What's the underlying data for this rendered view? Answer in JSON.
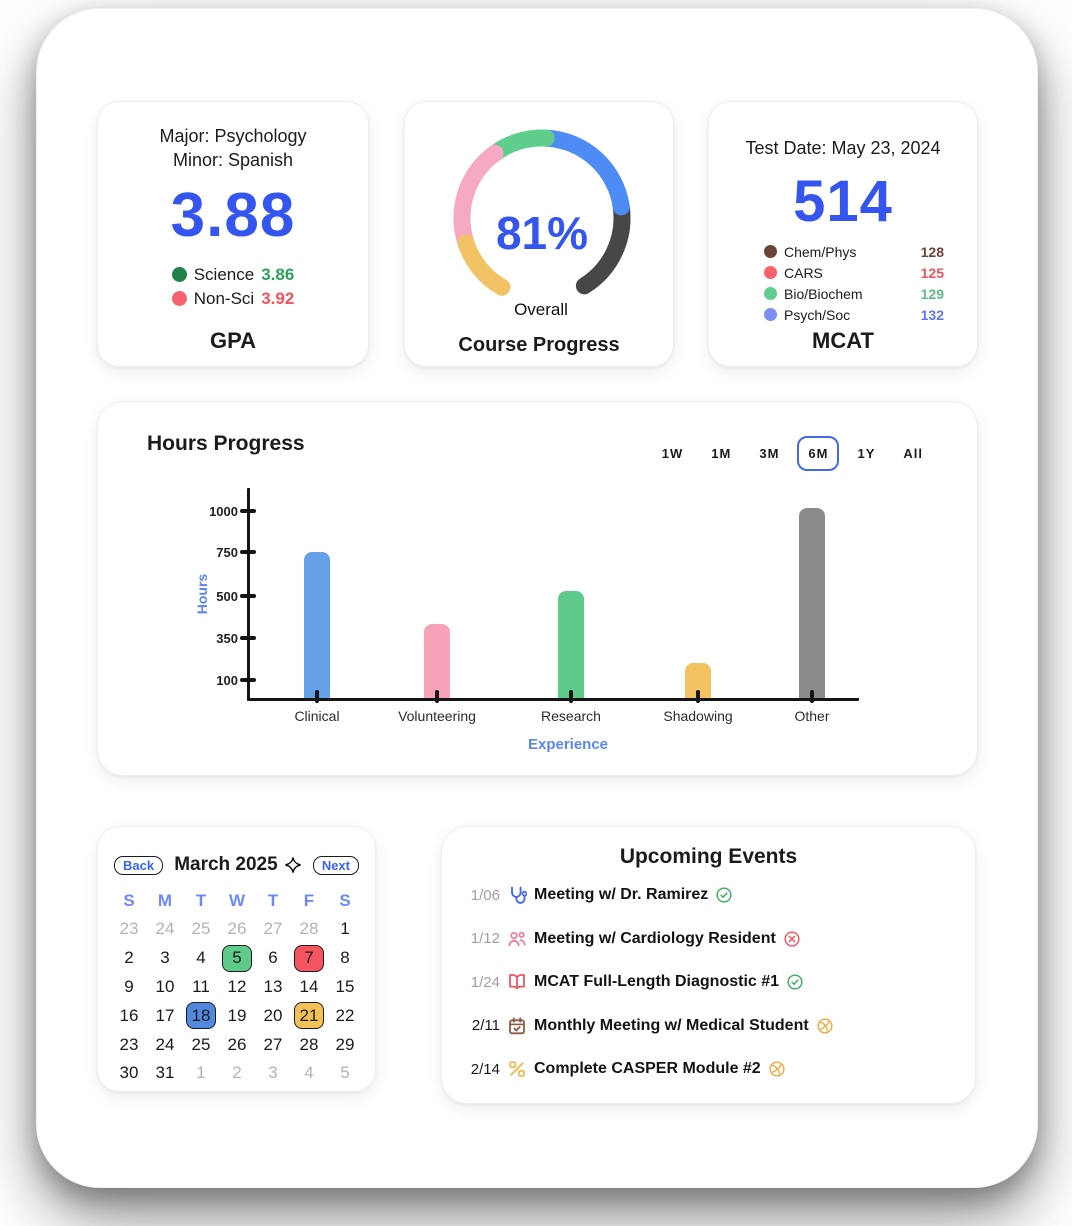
{
  "colors": {
    "accent_blue": "#3555f0",
    "label_blue": "#5b86f2",
    "filter_active_border": "#4169e8",
    "axis": "#141414"
  },
  "gpa_card": {
    "major": "Major: Psychology",
    "minor": "Minor: Spanish",
    "value": "3.88",
    "legend": [
      {
        "label": "Science",
        "value": "3.86",
        "dot_color": "#1f8148",
        "value_color": "#2aa258"
      },
      {
        "label": "Non-Sci",
        "value": "3.92",
        "dot_color": "#f8636e",
        "value_color": "#f4515c"
      }
    ],
    "title": "GPA"
  },
  "progress_card": {
    "percent": "81%",
    "sublabel": "Overall",
    "title": "Course Progress",
    "segments": [
      {
        "name": "segment-yellow",
        "color": "#f2c364",
        "from": 210,
        "to": 252
      },
      {
        "name": "segment-pink",
        "color": "#f6a9c4",
        "from": 252,
        "to": 324
      },
      {
        "name": "segment-green",
        "color": "#5fce8c",
        "from": 324,
        "to": 363
      },
      {
        "name": "segment-blue",
        "color": "#4d8bf5",
        "from": 363,
        "to": 442
      },
      {
        "name": "segment-remaining",
        "color": "#474747",
        "from": 442,
        "to": 508
      }
    ]
  },
  "mcat_card": {
    "test_date": "Test Date: May 23, 2024",
    "score": "514",
    "sections": [
      {
        "label": "Chem/Phys",
        "value": "128",
        "dot_color": "#6b4337",
        "value_color": "#6b4337"
      },
      {
        "label": "CARS",
        "value": "125",
        "dot_color": "#f8606b",
        "value_color": "#f4515c"
      },
      {
        "label": "Bio/Biochem",
        "value": "129",
        "dot_color": "#5fce8c",
        "value_color": "#5fbc82"
      },
      {
        "label": "Psych/Soc",
        "value": "132",
        "dot_color": "#7b8ef2",
        "value_color": "#5b76f0"
      }
    ],
    "title": "MCAT"
  },
  "hours_panel": {
    "title": "Hours Progress",
    "filters": [
      "1W",
      "1M",
      "3M",
      "6M",
      "1Y",
      "All"
    ],
    "active_filter": "6M"
  },
  "chart_data": {
    "type": "bar",
    "title": "Hours Progress",
    "xlabel": "Experience",
    "ylabel": "Hours",
    "categories": [
      "Clinical",
      "Volunteering",
      "Research",
      "Shadowing",
      "Other"
    ],
    "values": [
      750,
      400,
      530,
      200,
      1020
    ],
    "colors": [
      "#66a0e9",
      "#f6a3ba",
      "#5ecb8a",
      "#f3c261",
      "#8b8b8b"
    ],
    "yticks": [
      100,
      350,
      500,
      750,
      1000
    ],
    "ylim": [
      0,
      1050
    ],
    "grid": false,
    "legend": "none"
  },
  "calendar": {
    "back_label": "Back",
    "month_label": "March 2025",
    "next_label": "Next",
    "day_headers": [
      "S",
      "M",
      "T",
      "W",
      "T",
      "F",
      "S"
    ],
    "highlight_colors": {
      "green": "#5ecb8a",
      "red": "#f4555e",
      "blue": "#5089dd",
      "yellow": "#f4c156"
    },
    "cells": [
      {
        "d": "23",
        "muted": true
      },
      {
        "d": "24",
        "muted": true
      },
      {
        "d": "25",
        "muted": true
      },
      {
        "d": "26",
        "muted": true
      },
      {
        "d": "27",
        "muted": true
      },
      {
        "d": "28",
        "muted": true
      },
      {
        "d": "1"
      },
      {
        "d": "2"
      },
      {
        "d": "3"
      },
      {
        "d": "4"
      },
      {
        "d": "5",
        "hl": "green"
      },
      {
        "d": "6"
      },
      {
        "d": "7",
        "hl": "red"
      },
      {
        "d": "8"
      },
      {
        "d": "9"
      },
      {
        "d": "10"
      },
      {
        "d": "11"
      },
      {
        "d": "12"
      },
      {
        "d": "13"
      },
      {
        "d": "14"
      },
      {
        "d": "15"
      },
      {
        "d": "16"
      },
      {
        "d": "17"
      },
      {
        "d": "18",
        "hl": "blue"
      },
      {
        "d": "19"
      },
      {
        "d": "20"
      },
      {
        "d": "21",
        "hl": "yellow"
      },
      {
        "d": "22"
      },
      {
        "d": "23"
      },
      {
        "d": "24"
      },
      {
        "d": "25"
      },
      {
        "d": "26"
      },
      {
        "d": "27"
      },
      {
        "d": "28"
      },
      {
        "d": "29"
      },
      {
        "d": "30"
      },
      {
        "d": "31"
      },
      {
        "d": "1",
        "muted": true
      },
      {
        "d": "2",
        "muted": true
      },
      {
        "d": "3",
        "muted": true
      },
      {
        "d": "4",
        "muted": true
      },
      {
        "d": "5",
        "muted": true
      }
    ]
  },
  "events": {
    "title": "Upcoming Events",
    "status_colors": {
      "done": "#3fae5e",
      "cancelled": "#f4555e",
      "pending": "#f0a93f"
    },
    "items": [
      {
        "date": "1/06",
        "date_muted": true,
        "icon": "stethoscope-icon",
        "icon_color": "#4468ea",
        "text": "Meeting w/ Dr. Ramirez",
        "status": "done"
      },
      {
        "date": "1/12",
        "date_muted": true,
        "icon": "people-icon",
        "icon_color": "#f27d93",
        "text": "Meeting w/ Cardiology Resident",
        "status": "cancelled"
      },
      {
        "date": "1/24",
        "date_muted": true,
        "icon": "book-open-icon",
        "icon_color": "#f2555f",
        "text": "MCAT Full-Length Diagnostic #1",
        "status": "done"
      },
      {
        "date": "2/11",
        "date_muted": false,
        "icon": "calendar-check-icon",
        "icon_color": "#8a5a44",
        "text": "Monthly Meeting w/ Medical Student",
        "status": "pending"
      },
      {
        "date": "2/14",
        "date_muted": false,
        "icon": "percent-icon",
        "icon_color": "#f0bc55",
        "text": "Complete CASPER Module #2",
        "status": "pending"
      }
    ]
  }
}
